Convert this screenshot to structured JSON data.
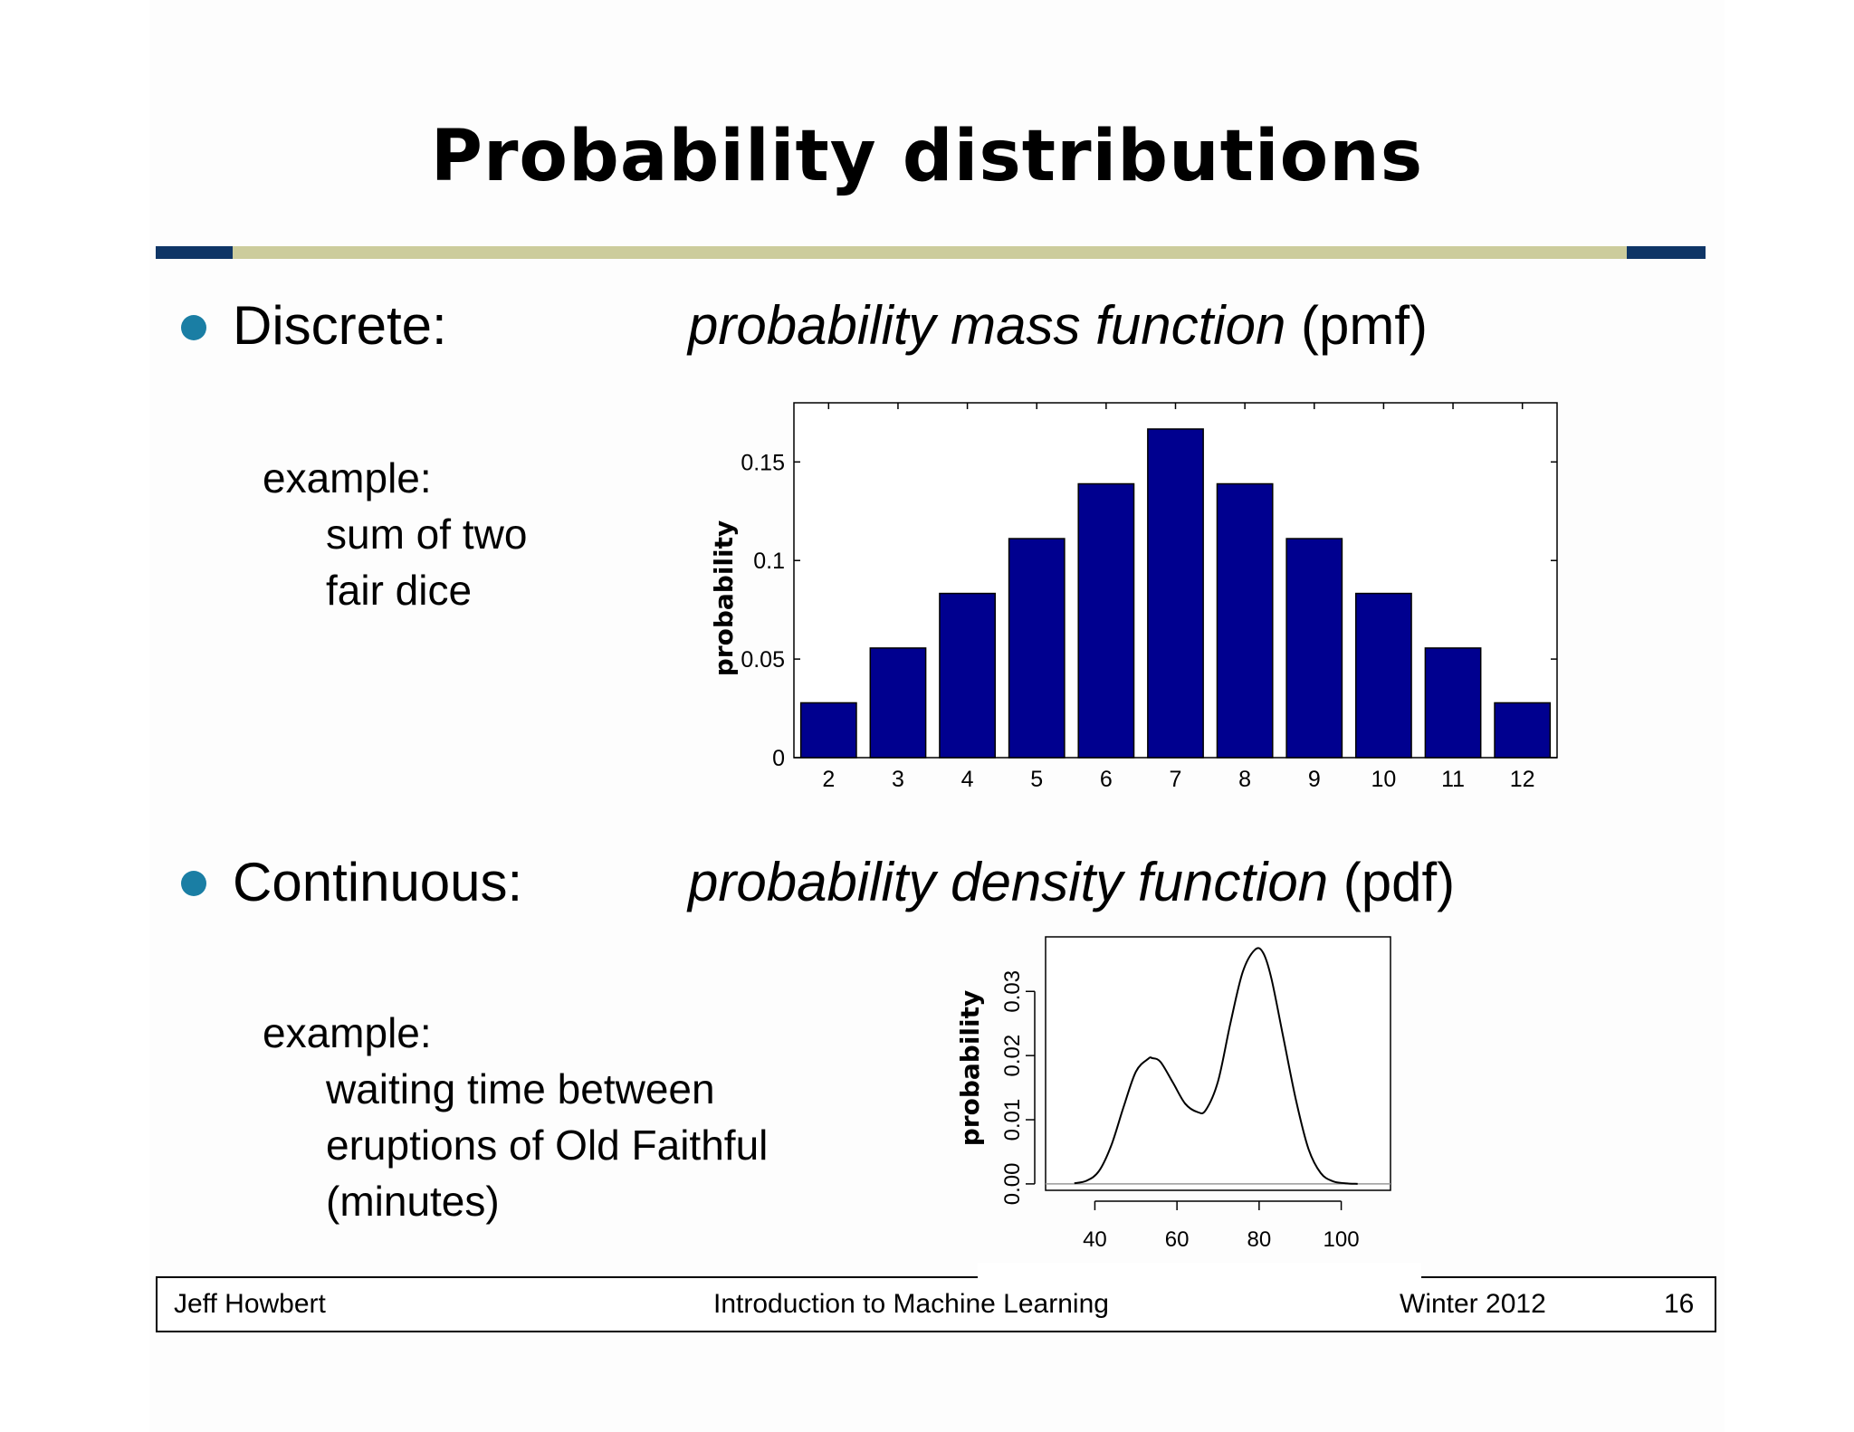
{
  "slide": {
    "title": "Probability distributions",
    "accent_colors": {
      "rule_dark": "#0e3566",
      "rule_light": "#cccc9c",
      "bullet": "#1a7ea4",
      "bar_fill": "#00008f"
    }
  },
  "discrete": {
    "label": "Discrete:",
    "subtitle_italic": "probability mass function",
    "subtitle_abbrev": "(pmf)",
    "example_label": "example:",
    "example_lines": [
      "sum of two",
      "fair dice"
    ]
  },
  "continuous": {
    "label": "Continuous:",
    "subtitle_italic": "probability density function",
    "subtitle_abbrev": "(pdf)",
    "example_label": "example:",
    "example_lines": [
      "waiting time between",
      "eruptions of Old Faithful",
      "(minutes)"
    ]
  },
  "chart_data": [
    {
      "type": "bar",
      "categories": [
        "2",
        "3",
        "4",
        "5",
        "6",
        "7",
        "8",
        "9",
        "10",
        "11",
        "12"
      ],
      "values": [
        0.0278,
        0.0556,
        0.0833,
        0.1111,
        0.1389,
        0.1667,
        0.1389,
        0.1111,
        0.0833,
        0.0556,
        0.0278
      ],
      "ylabel": "probability",
      "xlabel": "",
      "ylim": [
        0,
        0.18
      ],
      "yticks": [
        0,
        0.05,
        0.1,
        0.15
      ],
      "ytick_labels": [
        "0",
        "0.05",
        "0.1",
        "0.15"
      ],
      "grid": false
    },
    {
      "type": "line",
      "x": [
        35,
        38,
        41,
        44,
        47,
        50,
        53,
        54,
        56,
        59,
        62,
        65,
        67,
        70,
        73,
        76,
        79,
        81,
        83,
        86,
        89,
        92,
        95,
        98,
        101,
        104
      ],
      "y": [
        0.0001,
        0.0005,
        0.002,
        0.006,
        0.012,
        0.0175,
        0.0195,
        0.0196,
        0.019,
        0.0158,
        0.0125,
        0.0112,
        0.0115,
        0.016,
        0.025,
        0.033,
        0.0365,
        0.036,
        0.032,
        0.0225,
        0.013,
        0.0055,
        0.0017,
        0.0004,
        0.0001,
        0.0
      ],
      "ylabel": "probability",
      "xlabel": "",
      "xlim": [
        28,
        112
      ],
      "ylim": [
        -0.001,
        0.0385
      ],
      "xticks": [
        40,
        60,
        80,
        100
      ],
      "yticks": [
        0.0,
        0.01,
        0.02,
        0.03
      ],
      "ytick_labels": [
        "0.00",
        "0.01",
        "0.02",
        "0.03"
      ],
      "grid": false
    }
  ],
  "footer": {
    "author": "Jeff Howbert",
    "course": "Introduction to Machine Learning",
    "term": "Winter 2012",
    "page_number": "16"
  }
}
